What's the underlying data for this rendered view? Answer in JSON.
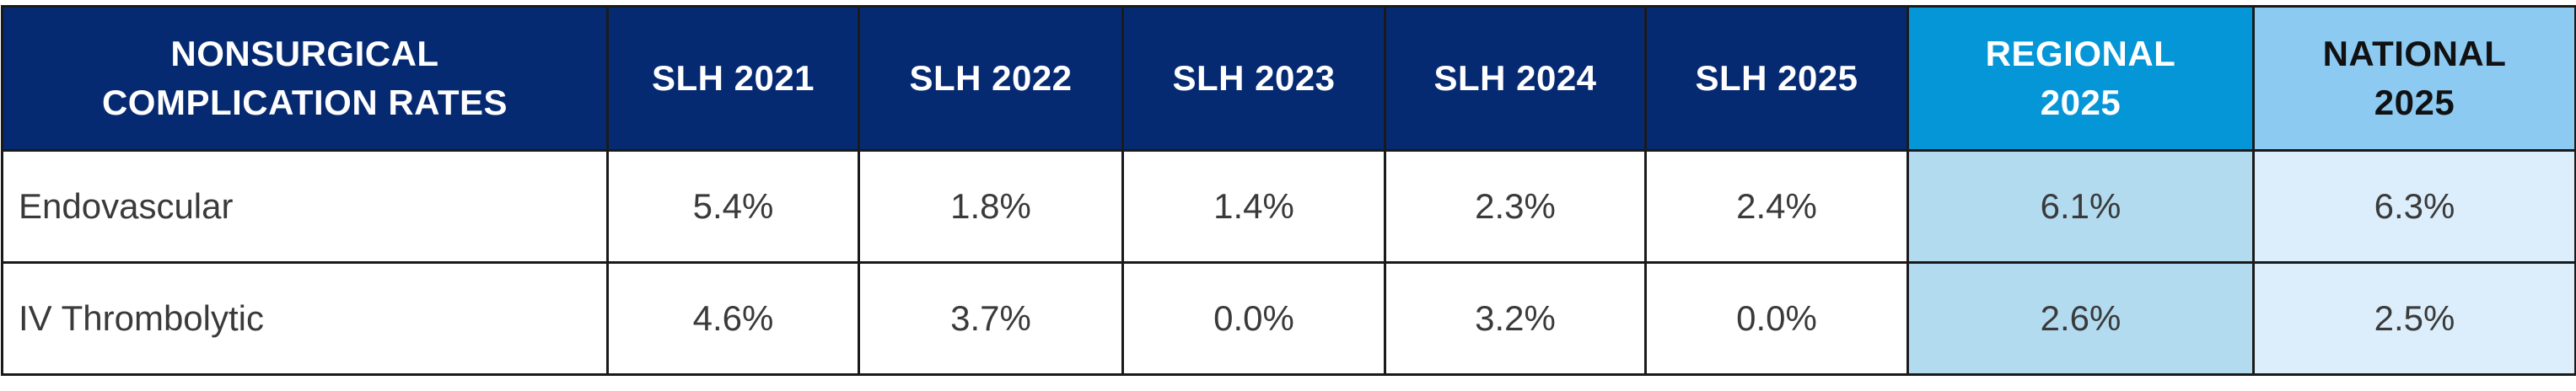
{
  "table": {
    "headers": [
      "NONSURGICAL\nCOMPLICATION RATES",
      "SLH 2021",
      "SLH 2022",
      "SLH 2023",
      "SLH 2024",
      "SLH 2025",
      "REGIONAL\n2025",
      "NATIONAL\n2025"
    ],
    "header_lines": {
      "first": [
        "NONSURGICAL",
        "COMPLICATION RATES"
      ],
      "regional": [
        "REGIONAL",
        "2025"
      ],
      "national": [
        "NATIONAL",
        "2025"
      ]
    },
    "rows": [
      {
        "label": "Endovascular",
        "values": [
          "5.4%",
          "1.8%",
          "1.4%",
          "2.3%",
          "2.4%",
          "6.1%",
          "6.3%"
        ]
      },
      {
        "label": "IV Thrombolytic",
        "values": [
          "4.6%",
          "3.7%",
          "0.0%",
          "3.2%",
          "0.0%",
          "2.6%",
          "2.5%"
        ]
      }
    ]
  },
  "colors": {
    "header_navy": "#062a72",
    "header_regional": "#0596d7",
    "header_national": "#8ccaf2",
    "cell_regional": "#b2dbf0",
    "cell_national": "#dceefb",
    "border": "#1a1a1a"
  }
}
